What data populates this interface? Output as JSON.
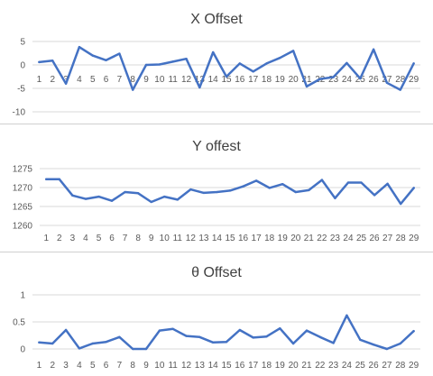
{
  "chart_data": [
    {
      "type": "line",
      "title": "X Offset",
      "categories": [
        "1",
        "2",
        "3",
        "4",
        "5",
        "6",
        "7",
        "8",
        "9",
        "10",
        "11",
        "12",
        "13",
        "14",
        "15",
        "16",
        "17",
        "18",
        "19",
        "20",
        "21",
        "22",
        "23",
        "24",
        "25",
        "26",
        "27",
        "28",
        "29"
      ],
      "series": [
        {
          "values": [
            0.6,
            0.9,
            -4.0,
            3.8,
            2.0,
            1.0,
            2.4,
            -5.3,
            0.0,
            0.1,
            0.7,
            1.3,
            -4.8,
            2.7,
            -2.5,
            0.3,
            -1.4,
            0.3,
            1.5,
            3.0,
            -4.6,
            -3.0,
            -2.6,
            0.4,
            -2.9,
            3.3,
            -3.8,
            -5.3,
            0.3
          ]
        }
      ],
      "ylim": [
        -10,
        5
      ],
      "yticks": [
        "5",
        "0",
        "-5",
        "-10"
      ],
      "ytick_values": [
        5,
        0,
        -5,
        -10
      ],
      "grid": true,
      "line_color": "#4472c4",
      "grid_color": "#d9d9d9"
    },
    {
      "type": "line",
      "title": "Y offest",
      "categories": [
        "1",
        "2",
        "3",
        "4",
        "5",
        "6",
        "7",
        "8",
        "9",
        "10",
        "11",
        "12",
        "13",
        "14",
        "15",
        "16",
        "17",
        "18",
        "19",
        "20",
        "21",
        "22",
        "23",
        "24",
        "25",
        "26",
        "27",
        "28",
        "29"
      ],
      "series": [
        {
          "values": [
            1272.2,
            1272.2,
            1267.9,
            1267.0,
            1267.6,
            1266.5,
            1268.8,
            1268.5,
            1266.2,
            1267.6,
            1266.8,
            1269.5,
            1268.6,
            1268.8,
            1269.2,
            1270.3,
            1271.8,
            1269.9,
            1270.9,
            1268.8,
            1269.3,
            1272.0,
            1267.2,
            1271.3,
            1271.3,
            1268.0,
            1271.0,
            1265.7,
            1269.9
          ]
        }
      ],
      "ylim": [
        1260,
        1275
      ],
      "yticks": [
        "1275",
        "1270",
        "1265",
        "1260"
      ],
      "ytick_values": [
        1275,
        1270,
        1265,
        1260
      ],
      "grid": true,
      "line_color": "#4472c4",
      "grid_color": "#d9d9d9"
    },
    {
      "type": "line",
      "title": "θ Offset",
      "categories": [
        "1",
        "2",
        "3",
        "4",
        "5",
        "6",
        "7",
        "8",
        "9",
        "10",
        "11",
        "12",
        "13",
        "14",
        "15",
        "16",
        "17",
        "18",
        "19",
        "20",
        "21",
        "22",
        "23",
        "24",
        "25",
        "26",
        "27",
        "28",
        "29"
      ],
      "series": [
        {
          "values": [
            0.12,
            0.1,
            0.35,
            0.01,
            0.1,
            0.13,
            0.22,
            0.0,
            0.0,
            0.34,
            0.37,
            0.24,
            0.22,
            0.12,
            0.13,
            0.35,
            0.21,
            0.23,
            0.38,
            0.1,
            0.34,
            0.22,
            0.11,
            0.62,
            0.17,
            0.08,
            0.0,
            0.1,
            0.33
          ]
        }
      ],
      "ylim": [
        0,
        1
      ],
      "yticks": [
        "1",
        "0.5",
        "0"
      ],
      "ytick_values": [
        1,
        0.5,
        0
      ],
      "grid": true,
      "line_color": "#4472c4",
      "grid_color": "#d9d9d9"
    }
  ]
}
